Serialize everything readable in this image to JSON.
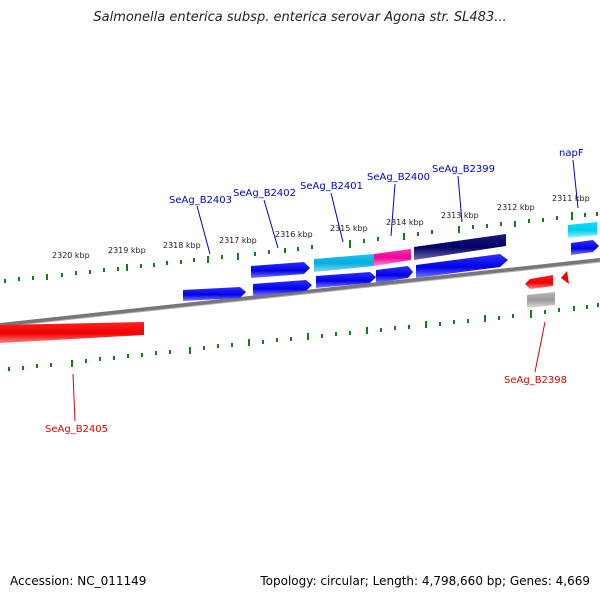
{
  "title": "Salmonella enterica subsp. enterica serovar Agona str. SL483...",
  "footer": {
    "accession": "Accession: NC_011149",
    "summary": "Topology: circular; Length: 4,798,660 bp; Genes: 4,669"
  },
  "colors": {
    "forward_label": "#0000cc",
    "reverse_label": "#dd0000",
    "tick": "#1a7a1a",
    "backbone": "#808080"
  },
  "kbp_labels": [
    "2320 kbp",
    "2319 kbp",
    "2318 kbp",
    "2317 kbp",
    "2316 kbp",
    "2315 kbp",
    "2314 kbp",
    "2313 kbp",
    "2312 kbp",
    "2311 kbp"
  ],
  "gene_labels": {
    "napF": "napF",
    "b2399": "SeAg_B2399",
    "b2400": "SeAg_B2400",
    "b2401": "SeAg_B2401",
    "b2402": "SeAg_B2402",
    "b2403": "SeAg_B2403",
    "b2398": "SeAg_B2398",
    "b2405": "SeAg_B2405"
  }
}
